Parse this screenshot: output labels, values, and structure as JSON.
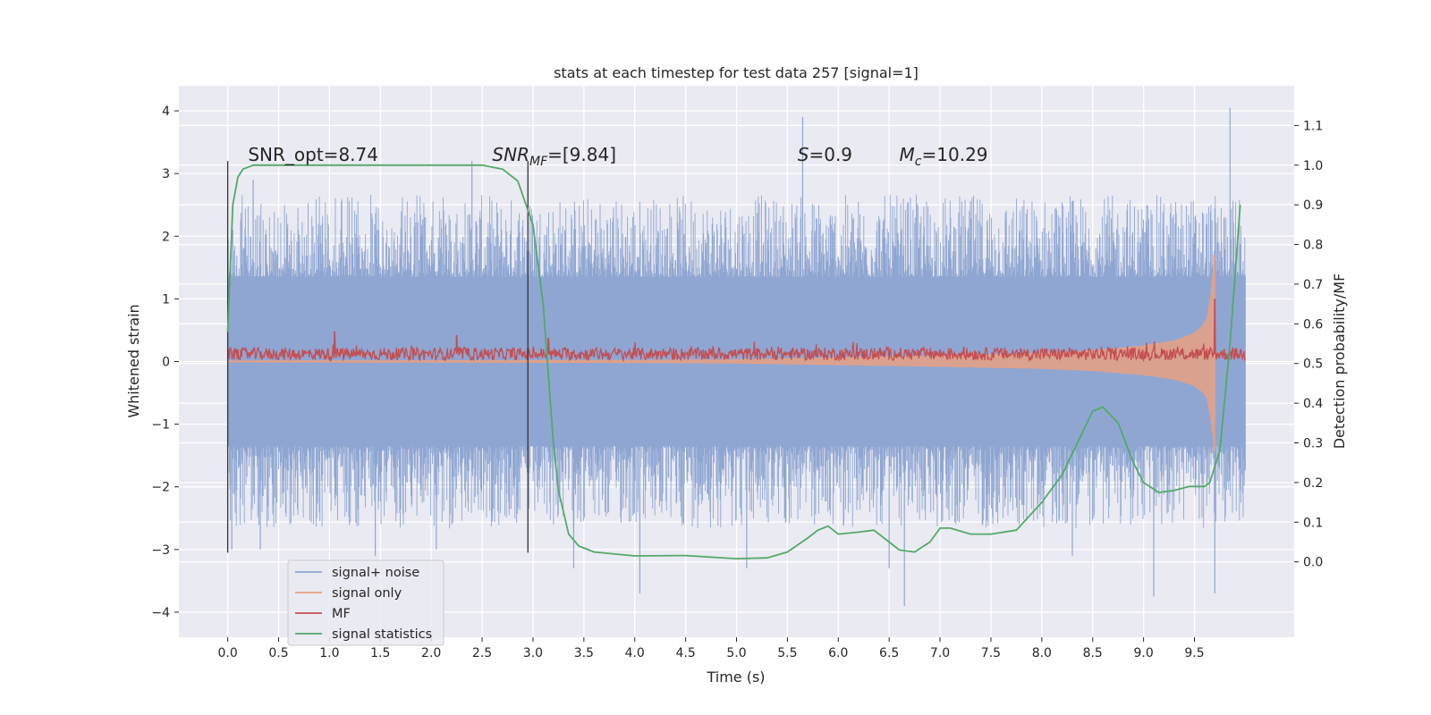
{
  "chart_data": {
    "type": "line",
    "title": "stats at each timestep for test data 257 [signal=1]",
    "xlabel": "Time (s)",
    "ylabel": "Whitened strain",
    "y2label": "Detection probability/MF",
    "xlim": [
      -0.48,
      10.48
    ],
    "ylim": [
      -4.4,
      4.4
    ],
    "y2lim": [
      -0.19,
      1.2
    ],
    "xticks": [
      0.0,
      0.5,
      1.0,
      1.5,
      2.0,
      2.5,
      3.0,
      3.5,
      4.0,
      4.5,
      5.0,
      5.5,
      6.0,
      6.5,
      7.0,
      7.5,
      8.0,
      8.5,
      9.0,
      9.5
    ],
    "xtick_labels": [
      "0.0",
      "0.5",
      "1.0",
      "1.5",
      "2.0",
      "2.5",
      "3.0",
      "3.5",
      "4.0",
      "4.5",
      "5.0",
      "5.5",
      "6.0",
      "6.5",
      "7.0",
      "7.5",
      "8.0",
      "8.5",
      "9.0",
      "9.5"
    ],
    "yticks": [
      -4,
      -3,
      -2,
      -1,
      0,
      1,
      2,
      3,
      4
    ],
    "ytick_labels": [
      "−4",
      "−3",
      "−2",
      "−1",
      "0",
      "1",
      "2",
      "3",
      "4"
    ],
    "y2ticks": [
      0.0,
      0.1,
      0.2,
      0.3,
      0.4,
      0.5,
      0.6,
      0.7,
      0.8,
      0.9,
      1.0,
      1.1
    ],
    "y2tick_labels": [
      "0.0",
      "0.1",
      "0.2",
      "0.3",
      "0.4",
      "0.5",
      "0.6",
      "0.7",
      "0.8",
      "0.9",
      "1.0",
      "1.1"
    ],
    "grid": true,
    "legend_position": "lower-left",
    "vertical_lines": [
      {
        "x": 0.0,
        "y_range": [
          -3.05,
          3.2
        ],
        "color": "#333333"
      },
      {
        "x": 2.95,
        "y_range": [
          -3.05,
          3.2
        ],
        "color": "#333333"
      }
    ],
    "annotations": [
      {
        "base": "SNR_opt=8.74",
        "sub": "",
        "tail": "",
        "italic_base": false,
        "x": 0.2,
        "y": 3.2
      },
      {
        "base": "SNR",
        "sub": "MF",
        "tail": "=[9.84]",
        "italic_base": true,
        "x": 2.6,
        "y": 3.2
      },
      {
        "base": "S",
        "sub": "",
        "tail": "=0.9",
        "italic_base": true,
        "x": 5.6,
        "y": 3.2
      },
      {
        "base": "M",
        "sub": "c",
        "tail": "=10.29",
        "italic_base": true,
        "x": 6.6,
        "y": 3.2
      }
    ],
    "series": [
      {
        "name": "signal+ noise",
        "axis": "left",
        "color": "#8fa6d2",
        "kind": "noise",
        "x_range": [
          0.0,
          10.0
        ],
        "band_envelope": [
          -1.35,
          1.35
        ],
        "typical_extremes": [
          -2.6,
          2.6
        ],
        "peaks": [
          [
            0.05,
            2.1
          ],
          [
            0.04,
            -3.0
          ],
          [
            0.25,
            2.9
          ],
          [
            0.32,
            -3.0
          ],
          [
            1.45,
            -3.1
          ],
          [
            2.05,
            -3.0
          ],
          [
            2.4,
            3.2
          ],
          [
            3.4,
            -3.3
          ],
          [
            4.05,
            -3.7
          ],
          [
            5.1,
            -3.3
          ],
          [
            5.65,
            3.9
          ],
          [
            6.5,
            -3.3
          ],
          [
            6.65,
            -3.9
          ],
          [
            8.3,
            -3.1
          ],
          [
            9.1,
            -3.75
          ],
          [
            9.7,
            -3.7
          ],
          [
            9.85,
            4.05
          ]
        ]
      },
      {
        "name": "signal only",
        "axis": "left",
        "color": "#e8a082",
        "kind": "chirp",
        "x_range": [
          0.0,
          9.7
        ],
        "envelope": [
          [
            0.0,
            0.01
          ],
          [
            4.0,
            0.02
          ],
          [
            5.0,
            0.03
          ],
          [
            6.0,
            0.06
          ],
          [
            7.0,
            0.09
          ],
          [
            8.0,
            0.13
          ],
          [
            8.5,
            0.17
          ],
          [
            9.0,
            0.25
          ],
          [
            9.3,
            0.33
          ],
          [
            9.5,
            0.45
          ],
          [
            9.6,
            0.6
          ],
          [
            9.65,
            0.8
          ],
          [
            9.69,
            1.7
          ]
        ]
      },
      {
        "name": "MF",
        "axis": "left",
        "color": "#c44e52",
        "kind": "noisy_line",
        "x_range": [
          0.0,
          10.0
        ],
        "baseline": 0.12,
        "amplitude": 0.1,
        "spikes": [
          [
            1.05,
            0.48
          ],
          [
            2.25,
            0.42
          ],
          [
            3.15,
            0.38
          ],
          [
            9.7,
            1.0
          ]
        ]
      },
      {
        "name": "signal statistics",
        "axis": "right",
        "color": "#55a868",
        "kind": "line",
        "x": [
          0.0,
          0.05,
          0.1,
          0.15,
          0.25,
          0.5,
          1.0,
          2.0,
          2.5,
          2.7,
          2.85,
          3.0,
          3.1,
          3.2,
          3.25,
          3.35,
          3.45,
          3.6,
          4.0,
          4.5,
          5.0,
          5.3,
          5.5,
          5.7,
          5.8,
          5.9,
          6.0,
          6.2,
          6.35,
          6.5,
          6.6,
          6.75,
          6.9,
          7.0,
          7.1,
          7.3,
          7.5,
          7.75,
          8.0,
          8.2,
          8.35,
          8.5,
          8.6,
          8.75,
          8.9,
          9.0,
          9.15,
          9.3,
          9.45,
          9.6,
          9.65,
          9.75,
          9.85,
          9.95
        ],
        "y": [
          0.58,
          0.9,
          0.97,
          0.99,
          1.0,
          1.0,
          1.0,
          1.0,
          1.0,
          0.99,
          0.96,
          0.85,
          0.65,
          0.3,
          0.18,
          0.07,
          0.04,
          0.025,
          0.015,
          0.016,
          0.008,
          0.01,
          0.025,
          0.06,
          0.08,
          0.09,
          0.07,
          0.075,
          0.08,
          0.05,
          0.03,
          0.025,
          0.05,
          0.085,
          0.085,
          0.07,
          0.07,
          0.08,
          0.15,
          0.22,
          0.3,
          0.38,
          0.39,
          0.35,
          0.25,
          0.2,
          0.175,
          0.18,
          0.19,
          0.19,
          0.2,
          0.28,
          0.55,
          0.9
        ]
      }
    ]
  }
}
